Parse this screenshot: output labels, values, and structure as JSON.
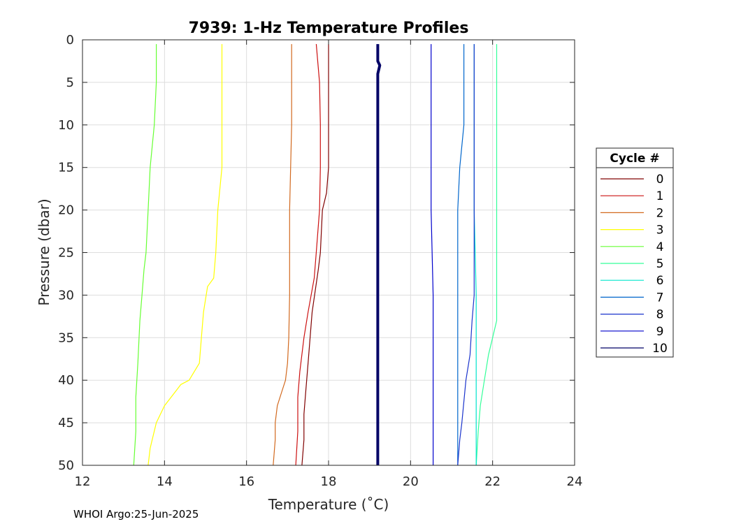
{
  "chart_data": {
    "type": "line",
    "title": "7939: 1-Hz Temperature Profiles",
    "xlabel": "Temperature (˚C)",
    "ylabel": "Pressure (dbar)",
    "xlim": [
      12,
      24
    ],
    "ylim": [
      0,
      50
    ],
    "y_reversed": true,
    "grid": true,
    "xticks": [
      "12",
      "14",
      "16",
      "18",
      "20",
      "22",
      "24"
    ],
    "yticks": [
      "0",
      "5",
      "10",
      "15",
      "20",
      "25",
      "30",
      "35",
      "40",
      "45",
      "50"
    ],
    "legend": {
      "title": "Cycle #",
      "placement": "outside-right"
    },
    "series": [
      {
        "name": "0",
        "color": "#800000",
        "x": [
          18.0,
          18.0,
          18.0,
          17.95,
          17.85,
          17.8,
          17.75,
          17.6,
          17.55,
          17.5,
          17.45,
          17.4,
          17.4,
          17.35
        ],
        "y": [
          0.5,
          10,
          15,
          18,
          20,
          25,
          27,
          32,
          35,
          38,
          41,
          44,
          47,
          50
        ]
      },
      {
        "name": "1",
        "color": "#cc1010",
        "x": [
          17.7,
          17.78,
          17.8,
          17.8,
          17.78,
          17.7,
          17.65,
          17.5,
          17.4,
          17.3,
          17.25,
          17.25,
          17.2
        ],
        "y": [
          0.5,
          5,
          10,
          15,
          20,
          25,
          28,
          32,
          35,
          39,
          42,
          46,
          50
        ]
      },
      {
        "name": "2",
        "color": "#d2691e",
        "x": [
          17.1,
          17.1,
          17.05,
          17.05,
          17.03,
          17.0,
          16.95,
          16.85,
          16.75,
          16.7,
          16.7,
          16.65
        ],
        "y": [
          0.5,
          10,
          20,
          30,
          35,
          38,
          40,
          41.5,
          43,
          45,
          47,
          50
        ]
      },
      {
        "name": "3",
        "color": "#ffff00",
        "x": [
          15.4,
          15.4,
          15.4,
          15.3,
          15.25,
          15.2,
          15.05,
          14.95,
          14.9,
          14.85,
          14.6,
          14.4,
          14.0,
          13.8,
          13.7,
          13.65,
          13.6
        ],
        "y": [
          0.5,
          10,
          15,
          20,
          25,
          28,
          29,
          32,
          35,
          38,
          40,
          40.5,
          43,
          45,
          47,
          48,
          50
        ]
      },
      {
        "name": "4",
        "color": "#66ff33",
        "x": [
          13.8,
          13.8,
          13.75,
          13.65,
          13.6,
          13.55,
          13.5,
          13.45,
          13.4,
          13.35,
          13.3,
          13.3,
          13.25
        ],
        "y": [
          0.5,
          5,
          10,
          15,
          20,
          25,
          27,
          30,
          33,
          38,
          42,
          46,
          50
        ]
      },
      {
        "name": "5",
        "color": "#33ff99",
        "x": [
          22.1,
          22.1,
          22.1,
          22.1,
          22.1,
          22.0,
          21.9,
          21.8,
          21.7,
          21.65,
          21.6
        ],
        "y": [
          0.5,
          10,
          20,
          30,
          33,
          35,
          37,
          40,
          43,
          46,
          50
        ]
      },
      {
        "name": "6",
        "color": "#00e5cc",
        "x": [
          21.55,
          21.55,
          21.55,
          21.6,
          21.6,
          21.6,
          21.6,
          21.6
        ],
        "y": [
          0.5,
          10,
          20,
          30,
          35,
          40,
          45,
          50
        ]
      },
      {
        "name": "7",
        "color": "#0066cc",
        "x": [
          21.3,
          21.3,
          21.2,
          21.15,
          21.15,
          21.15,
          21.15,
          21.15
        ],
        "y": [
          0.5,
          10,
          15,
          20,
          25,
          30,
          40,
          50
        ]
      },
      {
        "name": "8",
        "color": "#1a33cc",
        "x": [
          21.55,
          21.55,
          21.55,
          21.55,
          21.5,
          21.45,
          21.35,
          21.25,
          21.2,
          21.15
        ],
        "y": [
          0.5,
          10,
          20,
          30,
          33,
          37,
          40,
          45,
          47,
          50
        ]
      },
      {
        "name": "9",
        "color": "#0000cc",
        "x": [
          20.5,
          20.5,
          20.5,
          20.55,
          20.55,
          20.55
        ],
        "y": [
          0.5,
          10,
          20,
          30,
          40,
          50
        ]
      },
      {
        "name": "10",
        "color": "#000066",
        "x": [
          19.2,
          19.2,
          19.2,
          19.25,
          19.2,
          19.2,
          19.2,
          19.2,
          19.2
        ],
        "y": [
          0.5,
          1.5,
          2.5,
          3.0,
          4.0,
          10,
          20,
          35,
          50
        ]
      }
    ]
  },
  "footer": {
    "text": "WHOI Argo:25-Jun-2025"
  }
}
